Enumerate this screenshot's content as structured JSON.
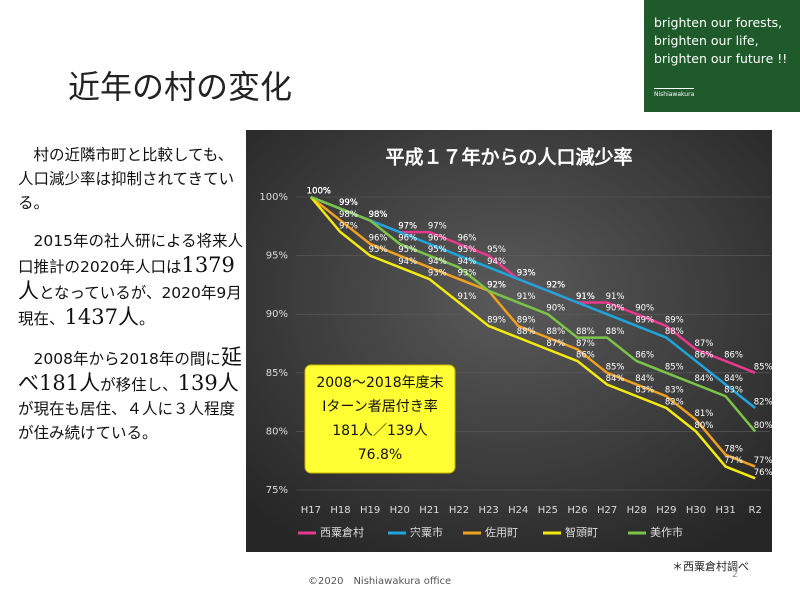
{
  "slide_title": "近年の村の変化",
  "brand": {
    "lines": [
      "brighten our forests,",
      "brighten our life,",
      "brighten our future !!"
    ],
    "small": "Nishiawakura"
  },
  "body": {
    "paragraphs": [
      [
        "村の近隣市町と比較しても、人口減少率は抑制されてきている。"
      ],
      [
        "2015年の社人研による将来人口推計の2020年人口は",
        "1379人",
        "となっているが、2020年9月現在、",
        "1437人",
        "。"
      ],
      [
        "2008年から2018年の間に",
        "延べ181人",
        "が移住し、",
        "139人",
        "が現在も居住、４人に３人程度が住み続けている。"
      ]
    ]
  },
  "footer": "©2020　Nishiawakura office",
  "page_number": "2",
  "note": "＊西粟倉村調べ",
  "chart_data": {
    "type": "line",
    "title": "平成１７年からの人口減少率",
    "categories": [
      "H17",
      "H18",
      "H19",
      "H20",
      "H21",
      "H22",
      "H23",
      "H24",
      "H25",
      "H26",
      "H27",
      "H28",
      "H29",
      "H30",
      "H31",
      "R2"
    ],
    "ylim": [
      75,
      100
    ],
    "yticks": [
      {
        "value": 75,
        "label": "75%"
      },
      {
        "value": 80,
        "label": "80%"
      },
      {
        "value": 85,
        "label": "85%"
      },
      {
        "value": 90,
        "label": "90%"
      },
      {
        "value": 95,
        "label": "95%"
      },
      {
        "value": 100,
        "label": "100%"
      }
    ],
    "series": [
      {
        "name": "西粟倉村",
        "color": "#e8388f",
        "values": [
          100,
          99,
          98,
          97,
          97,
          96,
          95,
          93,
          92,
          91,
          91,
          90,
          89,
          87,
          86,
          85
        ],
        "value_labels": [
          "100%",
          "99%",
          "98%",
          "97%",
          "97%",
          "96%",
          "95%",
          "93%",
          "92%",
          "91%",
          "91%",
          "90%",
          "89%",
          "87%",
          "86%",
          "85%"
        ]
      },
      {
        "name": "宍粟市",
        "color": "#1fa4dc",
        "values": [
          100,
          99,
          98,
          97,
          96,
          95,
          94,
          93,
          92,
          91,
          90,
          89,
          88,
          86,
          84,
          82
        ],
        "value_labels": [
          "100%",
          "99%",
          "98%",
          "97%",
          "96%",
          "95%",
          "94%",
          "93%",
          "92%",
          "91%",
          "90%",
          "89%",
          "88%",
          "86%",
          "84%",
          "82%"
        ]
      },
      {
        "name": "佐用町",
        "color": "#f0a020",
        "values": [
          100,
          98,
          96,
          95,
          94,
          93,
          92,
          89,
          88,
          87,
          85,
          84,
          83,
          81,
          78,
          77
        ],
        "value_labels": [
          "100%",
          "98%",
          "96%",
          "95%",
          "94%",
          "93%",
          "92%",
          "89%",
          "88%",
          "87%",
          "85%",
          "84%",
          "83%",
          "81%",
          "78%",
          "77%"
        ]
      },
      {
        "name": "智頭町",
        "color": "#f5ea10",
        "values": [
          100,
          97,
          95,
          94,
          93,
          91,
          89,
          88,
          87,
          86,
          84,
          83,
          82,
          80,
          77,
          76
        ],
        "value_labels": [
          "100%",
          "97%",
          "95%",
          "94%",
          "93%",
          "91%",
          "89%",
          "88%",
          "87%",
          "86%",
          "84%",
          "83%",
          "82%",
          "80%",
          "77%",
          "76%"
        ]
      },
      {
        "name": "美作市",
        "color": "#7cc448",
        "values": [
          100,
          99,
          98,
          96,
          95,
          94,
          92,
          91,
          90,
          88,
          88,
          86,
          85,
          84,
          83,
          80
        ],
        "value_labels": [
          "100%",
          "99%",
          "98%",
          "96%",
          "95%",
          "94%",
          "92%",
          "91%",
          "90%",
          "88%",
          "88%",
          "86%",
          "85%",
          "84%",
          "83%",
          "80%"
        ]
      }
    ],
    "annotation": [
      "2008～2018年度末",
      "Iターン者居付き率",
      "181人／139人",
      "76.8%"
    ],
    "legend": "bottom"
  }
}
